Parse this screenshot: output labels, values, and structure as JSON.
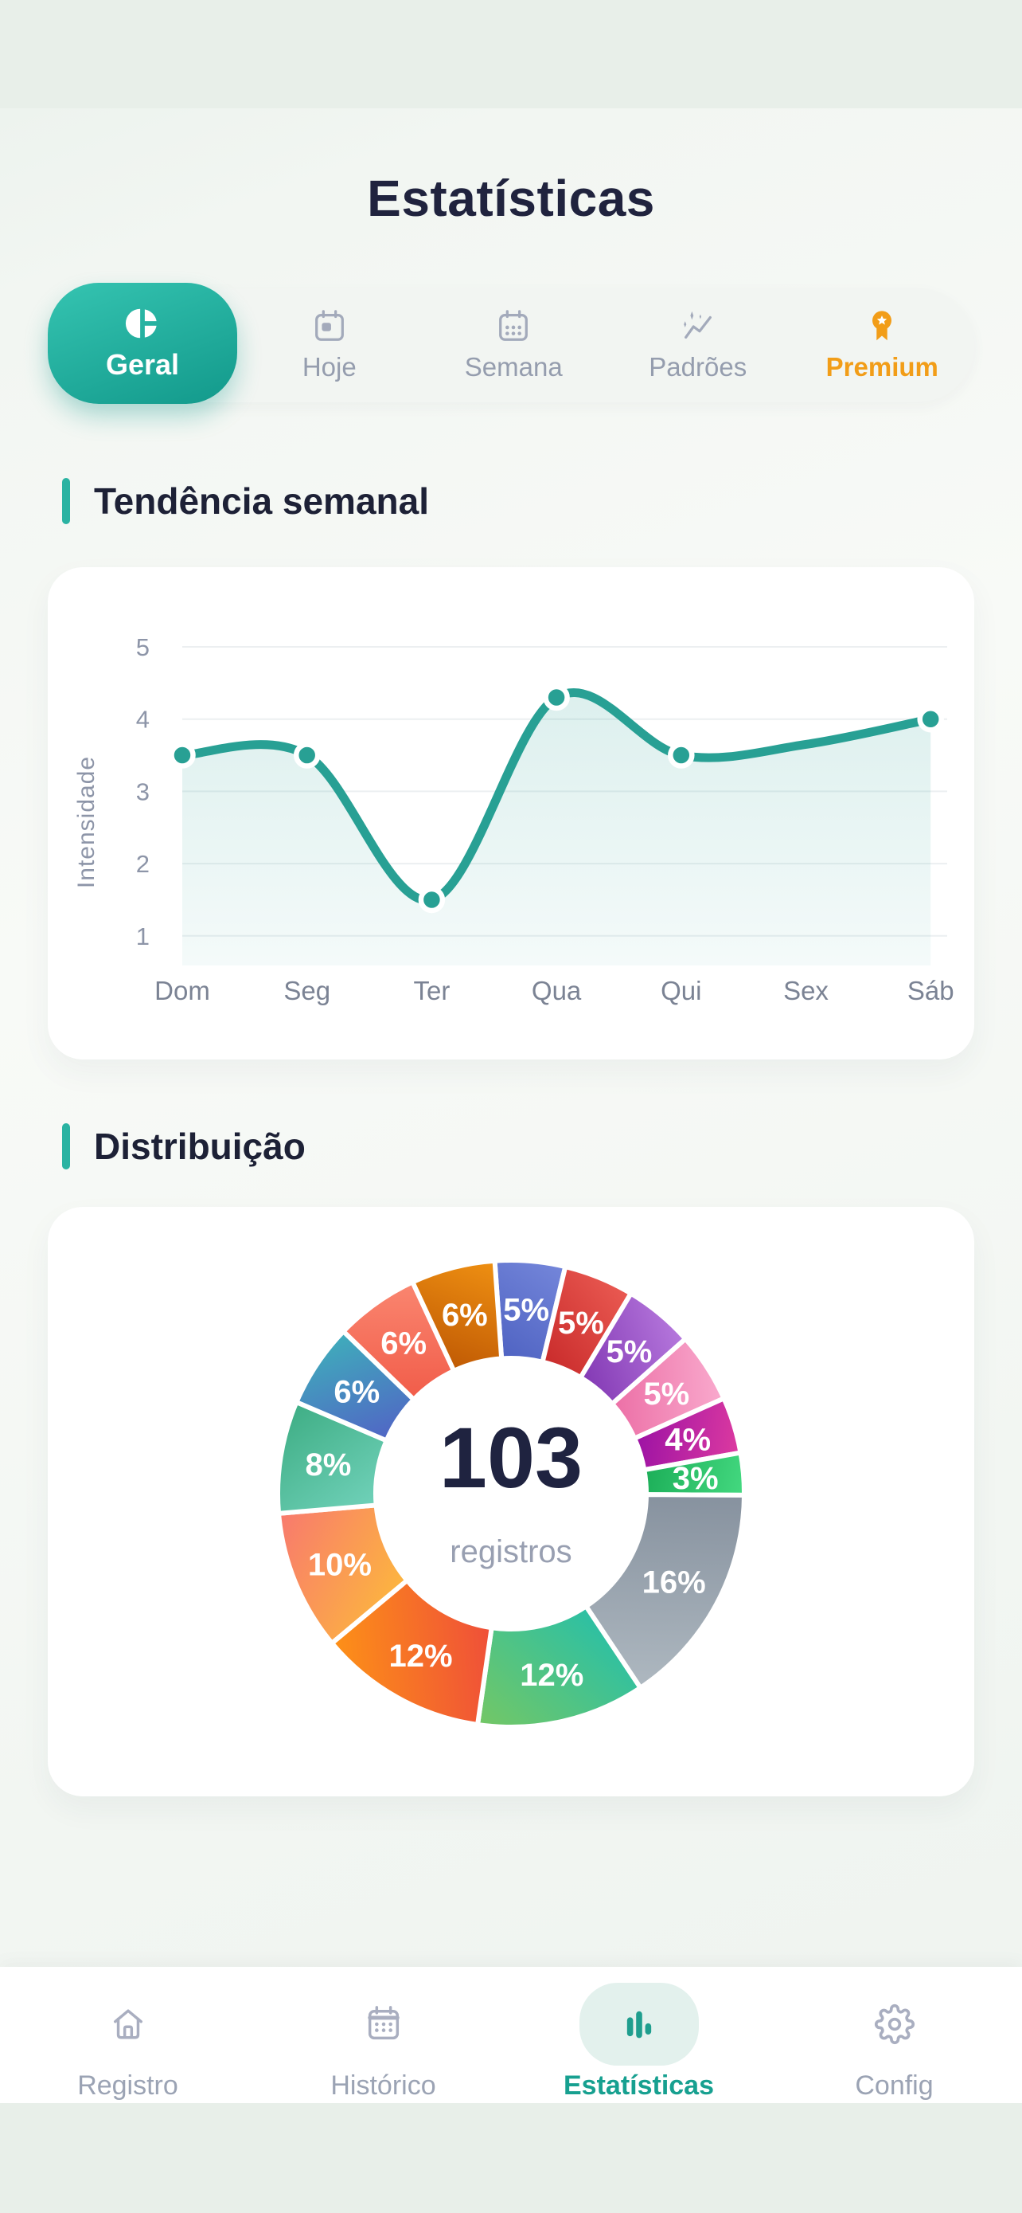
{
  "header": {
    "title": "Estatísticas",
    "tabs": [
      {
        "label": "Geral",
        "icon": "pie-chart-icon",
        "active": true
      },
      {
        "label": "Hoje",
        "icon": "calendar-day-icon",
        "active": false
      },
      {
        "label": "Semana",
        "icon": "calendar-week-icon",
        "active": false
      },
      {
        "label": "Padrões",
        "icon": "sparkles-trend-icon",
        "active": false
      },
      {
        "label": "Premium",
        "icon": "medal-icon",
        "active": false,
        "accent": "#f29d18"
      }
    ]
  },
  "sections": {
    "trend": {
      "title": "Tendência semanal"
    },
    "distribution": {
      "title": "Distribuição"
    }
  },
  "chart_data": [
    {
      "type": "line",
      "title": "Tendência semanal",
      "ylabel": "Intensidade",
      "x": [
        "Dom",
        "Seg",
        "Ter",
        "Qua",
        "Qui",
        "Sex",
        "Sáb"
      ],
      "yticks": [
        1,
        2,
        3,
        4,
        5
      ],
      "ylim": [
        1,
        5
      ],
      "grid": true,
      "series": [
        {
          "name": "Intensidade",
          "values": [
            3.5,
            3.5,
            1.5,
            4.3,
            3.5,
            3.65,
            4.0
          ],
          "markers": [
            true,
            true,
            true,
            true,
            true,
            false,
            true
          ]
        }
      ],
      "line_color": "#28a094",
      "grid_color": "#eceff1"
    },
    {
      "type": "pie",
      "subtype": "donut",
      "center_value": "103",
      "center_label": "registros",
      "values": [
        5,
        5,
        5,
        5,
        4,
        3,
        16,
        12,
        12,
        10,
        8,
        6,
        6,
        6
      ],
      "labels": [
        "5%",
        "5%",
        "5%",
        "5%",
        "4%",
        "3%",
        "16%",
        "12%",
        "12%",
        "10%",
        "8%",
        "6%",
        "6%",
        "6%"
      ],
      "colors": [
        [
          "#7486da",
          "#4f63c2"
        ],
        [
          "#ea5a52",
          "#c92b2b"
        ],
        [
          "#b678dd",
          "#8339b4"
        ],
        [
          "#f9aacd",
          "#ec6fa6"
        ],
        [
          "#dd3aa0",
          "#9c12a4"
        ],
        [
          "#44d980",
          "#1cae58"
        ],
        [
          "#aeb8c0",
          "#87929f"
        ],
        [
          "#74c765",
          "#2cc0a4"
        ],
        [
          "#fd9117",
          "#ef4f39"
        ],
        [
          "#f8796e",
          "#fcb53f"
        ],
        [
          "#3fae85",
          "#70d1b9"
        ],
        [
          "#3fadbb",
          "#5165c5"
        ],
        [
          "#fa8670",
          "#f15c49"
        ],
        [
          "#ef9012",
          "#c05a04"
        ]
      ],
      "start_angle": -4,
      "direction": "clockwise",
      "inner_radius_ratio": 0.58,
      "legend_position": "none"
    }
  ],
  "bottom_nav": {
    "items": [
      {
        "label": "Registro",
        "icon": "home-icon",
        "active": false
      },
      {
        "label": "Histórico",
        "icon": "calendar-history-icon",
        "active": false
      },
      {
        "label": "Estatísticas",
        "icon": "bar-chart-icon",
        "active": true
      },
      {
        "label": "Config",
        "icon": "gear-icon",
        "active": false
      }
    ]
  },
  "colors": {
    "primary_teal": "#1fa796",
    "pill_gradient_from": "#35c4b1",
    "pill_gradient_to": "#12998b",
    "navy": "#20233e",
    "gray_text": "#959dae",
    "premium_orange": "#f29d18",
    "nav_active_bg": "#e3f1ed",
    "accent_bar": "#2ab3a2"
  }
}
